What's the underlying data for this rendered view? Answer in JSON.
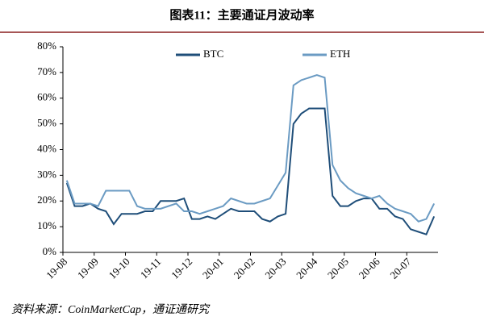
{
  "chart_data": {
    "type": "line",
    "title": "图表11：主要通证月波动率",
    "source": "资料来源：CoinMarketCap，通证通研究",
    "categories": [
      "19-08",
      null,
      null,
      null,
      "19-09",
      null,
      null,
      null,
      "19-10",
      null,
      null,
      null,
      "19-11",
      null,
      null,
      null,
      "19-12",
      null,
      null,
      null,
      "20-01",
      null,
      null,
      null,
      "20-02",
      null,
      null,
      null,
      "20-03",
      null,
      null,
      null,
      "20-04",
      null,
      null,
      null,
      "20-05",
      null,
      null,
      null,
      "20-06",
      null,
      null,
      null,
      "20-07",
      null,
      null,
      null
    ],
    "series": [
      {
        "name": "BTC",
        "color": "#1f4e79",
        "values": [
          27,
          18,
          18,
          19,
          17,
          16,
          11,
          15,
          15,
          15,
          16,
          16,
          20,
          20,
          20,
          21,
          13,
          13,
          14,
          13,
          15,
          17,
          16,
          16,
          16,
          13,
          12,
          14,
          15,
          50,
          54,
          56,
          56,
          56,
          22,
          18,
          18,
          20,
          21,
          21,
          17,
          17,
          14,
          13,
          9,
          8,
          7,
          14
        ]
      },
      {
        "name": "ETH",
        "color": "#6b9bc3",
        "values": [
          28,
          19,
          19,
          19,
          18,
          24,
          24,
          24,
          24,
          18,
          17,
          17,
          17,
          18,
          19,
          16,
          16,
          15,
          16,
          17,
          18,
          21,
          20,
          19,
          19,
          20,
          21,
          26,
          31,
          65,
          67,
          68,
          69,
          68,
          34,
          28,
          25,
          23,
          22,
          21,
          22,
          19,
          17,
          16,
          15,
          12,
          13,
          19
        ]
      }
    ],
    "ylim": [
      0,
      80
    ],
    "yticks": [
      {
        "value": 0,
        "label": "0%"
      },
      {
        "value": 10,
        "label": "10%"
      },
      {
        "value": 20,
        "label": "20%"
      },
      {
        "value": 30,
        "label": "30%"
      },
      {
        "value": 40,
        "label": "40%"
      },
      {
        "value": 50,
        "label": "50%"
      },
      {
        "value": 60,
        "label": "60%"
      },
      {
        "value": 70,
        "label": "70%"
      },
      {
        "value": 80,
        "label": "80%"
      }
    ],
    "legend": "top"
  }
}
